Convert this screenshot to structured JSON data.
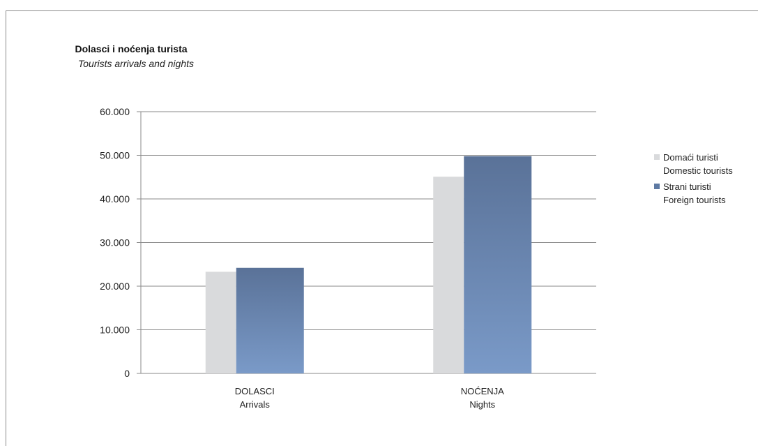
{
  "chart_data": {
    "type": "bar",
    "title": "Dolasci i noćenja turista",
    "subtitle": "Tourists arrivals and nights",
    "categories": [
      {
        "line1": "DOLASCI",
        "line2": "Arrivals"
      },
      {
        "line1": "NOĆENJA",
        "line2": "Nights"
      }
    ],
    "series": [
      {
        "name": "Domaći turisti",
        "name_en": "Domestic tourists",
        "values": [
          23300,
          45100
        ],
        "color": "#d9dadc"
      },
      {
        "name": "Strani turisti",
        "name_en": "Foreign tourists",
        "values": [
          24200,
          49800
        ],
        "color": "#5e7aa3"
      }
    ],
    "yticks": [
      "0",
      "10.000",
      "20.000",
      "30.000",
      "40.000",
      "50.000",
      "60.000"
    ],
    "ylim": [
      0,
      60000
    ],
    "grid": true,
    "legend_position": "right"
  }
}
